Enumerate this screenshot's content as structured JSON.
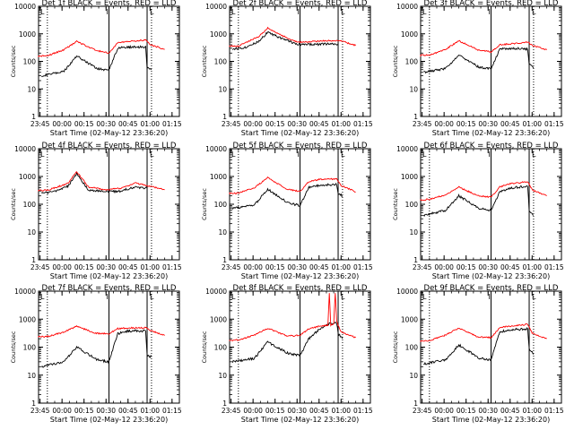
{
  "figure": {
    "x_tick_labels": [
      "23:45",
      "00:00",
      "00:15",
      "00:30",
      "00:45",
      "01:00",
      "01:15"
    ],
    "y_tick_labels": [
      "1",
      "10",
      "100",
      "1000",
      "10000"
    ],
    "y_label": "Counts/sec",
    "x_label": "Start Time (02-May-12 23:36:20)",
    "legend_markers": [
      "I",
      "L"
    ],
    "colors": {
      "events": "#000000",
      "lld": "#ff0000"
    }
  },
  "chart_data": [
    {
      "type": "line",
      "title": "Det 1f BLACK = Events, RED = LLD",
      "yscale": "log",
      "ylim": [
        1,
        10000
      ],
      "xlabel": "Start Time (02-May-12 23:36:20)",
      "ylabel": "Counts/sec",
      "grid": false,
      "x_tick_labels": [
        "23:45",
        "00:00",
        "00:15",
        "00:30",
        "00:45",
        "01:00",
        "01:15"
      ],
      "vlines_dotted": [
        "23:50",
        "01:01"
      ],
      "vlines_solid": [
        "00:32",
        "00:58"
      ],
      "series": [
        {
          "name": "Events",
          "color": "#000000",
          "x": [
            "23:46",
            "00:01",
            "00:10",
            "00:24",
            "00:32",
            "00:38",
            "00:45",
            "00:57",
            "00:58",
            "01:01"
          ],
          "y": [
            30,
            42,
            155,
            55,
            48,
            300,
            330,
            330,
            60,
            50
          ]
        },
        {
          "name": "LLD",
          "color": "#ff0000",
          "x": [
            "23:36",
            "23:50",
            "00:01",
            "00:10",
            "00:23",
            "00:32",
            "00:38",
            "00:45",
            "00:57",
            "01:00",
            "01:10"
          ],
          "y": [
            150,
            160,
            260,
            530,
            250,
            200,
            480,
            530,
            590,
            410,
            270
          ]
        }
      ]
    },
    {
      "type": "line",
      "title": "Det 2f BLACK = Events, RED = LLD",
      "yscale": "log",
      "ylim": [
        1,
        10000
      ],
      "xlabel": "Start Time (02-May-12 23:36:20)",
      "ylabel": "Counts/sec",
      "grid": false,
      "x_tick_labels": [
        "23:45",
        "00:00",
        "00:15",
        "00:30",
        "00:45",
        "01:00",
        "01:15"
      ],
      "vlines_dotted": [
        "23:50",
        "01:01"
      ],
      "vlines_solid": [
        "00:32",
        "00:58"
      ],
      "series": [
        {
          "name": "Events",
          "color": "#000000",
          "x": [
            "23:46",
            "23:56",
            "00:04",
            "00:10",
            "00:20",
            "00:30",
            "00:40",
            "00:50",
            "00:58"
          ],
          "y": [
            280,
            330,
            550,
            1150,
            650,
            420,
            400,
            430,
            430
          ]
        },
        {
          "name": "LLD",
          "color": "#ff0000",
          "x": [
            "23:36",
            "23:50",
            "00:04",
            "00:10",
            "00:20",
            "00:30",
            "00:40",
            "00:50",
            "01:00",
            "01:10"
          ],
          "y": [
            360,
            360,
            800,
            1600,
            850,
            500,
            520,
            560,
            550,
            380
          ]
        }
      ]
    },
    {
      "type": "line",
      "title": "Det 3f BLACK = Events, RED = LLD",
      "yscale": "log",
      "ylim": [
        1,
        10000
      ],
      "xlabel": "Start Time (02-May-12 23:36:20)",
      "ylabel": "Counts/sec",
      "grid": false,
      "x_tick_labels": [
        "23:45",
        "00:00",
        "00:15",
        "00:30",
        "00:45",
        "01:00",
        "01:15"
      ],
      "vlines_dotted": [
        "23:50",
        "01:01"
      ],
      "vlines_solid": [
        "00:32",
        "00:58"
      ],
      "series": [
        {
          "name": "Events",
          "color": "#000000",
          "x": [
            "23:46",
            "00:01",
            "00:10",
            "00:24",
            "00:32",
            "00:38",
            "00:45",
            "00:57",
            "00:58",
            "01:01"
          ],
          "y": [
            40,
            55,
            170,
            60,
            55,
            280,
            300,
            280,
            80,
            55
          ]
        },
        {
          "name": "LLD",
          "color": "#ff0000",
          "x": [
            "23:36",
            "23:50",
            "00:01",
            "00:10",
            "00:23",
            "00:32",
            "00:38",
            "00:45",
            "00:57",
            "01:00",
            "01:10"
          ],
          "y": [
            160,
            170,
            270,
            560,
            260,
            220,
            400,
            430,
            500,
            380,
            260
          ]
        }
      ]
    },
    {
      "type": "line",
      "title": "Det 4f BLACK = Events, RED = LLD",
      "yscale": "log",
      "ylim": [
        1,
        10000
      ],
      "xlabel": "Start Time (02-May-12 23:36:20)",
      "ylabel": "Counts/sec",
      "grid": false,
      "x_tick_labels": [
        "23:45",
        "00:00",
        "00:15",
        "00:30",
        "00:45",
        "01:00",
        "01:15"
      ],
      "vlines_dotted": [
        "23:50",
        "01:01"
      ],
      "vlines_solid": [
        "00:32",
        "00:58"
      ],
      "series": [
        {
          "name": "Events",
          "color": "#000000",
          "x": [
            "23:46",
            "23:56",
            "00:04",
            "00:10",
            "00:18",
            "00:30",
            "00:40",
            "00:50",
            "00:58"
          ],
          "y": [
            250,
            290,
            450,
            1250,
            330,
            280,
            300,
            420,
            380
          ]
        },
        {
          "name": "LLD",
          "color": "#ff0000",
          "x": [
            "23:36",
            "23:50",
            "00:04",
            "00:10",
            "00:18",
            "00:30",
            "00:40",
            "00:50",
            "01:00",
            "01:10"
          ],
          "y": [
            310,
            320,
            560,
            1500,
            420,
            330,
            380,
            580,
            450,
            330
          ]
        }
      ]
    },
    {
      "type": "line",
      "title": "Det 5f BLACK = Events, RED = LLD",
      "yscale": "log",
      "ylim": [
        1,
        10000
      ],
      "xlabel": "Start Time (02-May-12 23:36:20)",
      "ylabel": "Counts/sec",
      "grid": false,
      "x_tick_labels": [
        "23:45",
        "00:00",
        "00:15",
        "00:30",
        "00:45",
        "01:00",
        "01:15"
      ],
      "vlines_dotted": [
        "23:50",
        "01:01"
      ],
      "vlines_solid": [
        "00:32",
        "00:58"
      ],
      "series": [
        {
          "name": "Events",
          "color": "#000000",
          "x": [
            "23:46",
            "00:01",
            "00:10",
            "00:24",
            "00:32",
            "00:38",
            "00:45",
            "00:57",
            "00:58",
            "01:01"
          ],
          "y": [
            70,
            95,
            350,
            110,
            90,
            400,
            480,
            520,
            250,
            200
          ]
        },
        {
          "name": "LLD",
          "color": "#ff0000",
          "x": [
            "23:36",
            "23:50",
            "00:01",
            "00:10",
            "00:23",
            "00:32",
            "00:38",
            "00:45",
            "00:57",
            "01:00",
            "01:10"
          ],
          "y": [
            240,
            250,
            400,
            900,
            350,
            290,
            650,
            780,
            820,
            480,
            280
          ]
        }
      ]
    },
    {
      "type": "line",
      "title": "Det 6f BLACK = Events, RED = LLD",
      "yscale": "log",
      "ylim": [
        1,
        10000
      ],
      "xlabel": "Start Time (02-May-12 23:36:20)",
      "ylabel": "Counts/sec",
      "grid": false,
      "x_tick_labels": [
        "23:45",
        "00:00",
        "00:15",
        "00:30",
        "00:45",
        "01:00",
        "01:15"
      ],
      "vlines_dotted": [
        "23:50",
        "01:01"
      ],
      "vlines_solid": [
        "00:32",
        "00:58"
      ],
      "series": [
        {
          "name": "Events",
          "color": "#000000",
          "x": [
            "23:46",
            "00:01",
            "00:10",
            "00:24",
            "00:32",
            "00:38",
            "00:45",
            "00:57",
            "00:58",
            "01:01"
          ],
          "y": [
            40,
            60,
            200,
            70,
            60,
            280,
            380,
            450,
            60,
            40
          ]
        },
        {
          "name": "LLD",
          "color": "#ff0000",
          "x": [
            "23:36",
            "23:50",
            "00:01",
            "00:10",
            "00:23",
            "00:32",
            "00:38",
            "00:45",
            "00:57",
            "01:00",
            "01:10"
          ],
          "y": [
            140,
            150,
            220,
            420,
            200,
            180,
            420,
            560,
            640,
            330,
            200
          ]
        }
      ]
    },
    {
      "type": "line",
      "title": "Det 7f BLACK = Events, RED = LLD",
      "yscale": "log",
      "ylim": [
        1,
        10000
      ],
      "xlabel": "Start Time (02-May-12 23:36:20)",
      "ylabel": "Counts/sec",
      "grid": false,
      "x_tick_labels": [
        "23:45",
        "00:00",
        "00:15",
        "00:30",
        "00:45",
        "01:00",
        "01:15"
      ],
      "vlines_dotted": [
        "23:50",
        "01:01"
      ],
      "vlines_solid": [
        "00:32",
        "00:58"
      ],
      "series": [
        {
          "name": "Events",
          "color": "#000000",
          "x": [
            "23:46",
            "00:01",
            "00:10",
            "00:24",
            "00:32",
            "00:38",
            "00:45",
            "00:57",
            "00:58",
            "01:01"
          ],
          "y": [
            20,
            30,
            100,
            35,
            30,
            300,
            380,
            380,
            50,
            45
          ]
        },
        {
          "name": "LLD",
          "color": "#ff0000",
          "x": [
            "23:36",
            "23:50",
            "00:01",
            "00:10",
            "00:23",
            "00:32",
            "00:38",
            "00:45",
            "00:57",
            "01:00",
            "01:10"
          ],
          "y": [
            230,
            240,
            340,
            560,
            310,
            300,
            460,
            480,
            500,
            400,
            260
          ]
        }
      ]
    },
    {
      "type": "line",
      "title": "Det 8f BLACK = Events, RED = LLD",
      "yscale": "log",
      "ylim": [
        1,
        10000
      ],
      "xlabel": "Start Time (02-May-12 23:36:20)",
      "ylabel": "Counts/sec",
      "grid": false,
      "x_tick_labels": [
        "23:45",
        "00:00",
        "00:15",
        "00:30",
        "00:45",
        "01:00",
        "01:15"
      ],
      "vlines_dotted": [
        "23:50",
        "01:01"
      ],
      "vlines_solid": [
        "00:32",
        "00:58"
      ],
      "series": [
        {
          "name": "Events",
          "color": "#000000",
          "x": [
            "23:46",
            "00:01",
            "00:10",
            "00:24",
            "00:32",
            "00:38",
            "00:45",
            "00:52",
            "00:57",
            "00:58",
            "01:01"
          ],
          "y": [
            30,
            40,
            150,
            60,
            50,
            200,
            420,
            700,
            750,
            300,
            200
          ]
        },
        {
          "name": "LLD",
          "color": "#ff0000",
          "x": [
            "23:36",
            "23:50",
            "00:01",
            "00:10",
            "00:23",
            "00:32",
            "00:38",
            "00:45",
            "00:51",
            "00:52",
            "00:53",
            "00:55",
            "00:56",
            "00:57",
            "01:00",
            "01:10"
          ],
          "y": [
            170,
            180,
            270,
            470,
            250,
            260,
            450,
            560,
            600,
            9000,
            600,
            650,
            9000,
            820,
            350,
            220
          ]
        }
      ]
    },
    {
      "type": "line",
      "title": "Det 9f BLACK = Events, RED = LLD",
      "yscale": "log",
      "ylim": [
        1,
        10000
      ],
      "xlabel": "Start Time (02-May-12 23:36:20)",
      "ylabel": "Counts/sec",
      "grid": false,
      "x_tick_labels": [
        "23:45",
        "00:00",
        "00:15",
        "00:30",
        "00:45",
        "01:00",
        "01:15"
      ],
      "vlines_dotted": [
        "23:50",
        "01:01"
      ],
      "vlines_solid": [
        "00:32",
        "00:58"
      ],
      "series": [
        {
          "name": "Events",
          "color": "#000000",
          "x": [
            "23:46",
            "00:01",
            "00:10",
            "00:24",
            "00:32",
            "00:38",
            "00:45",
            "00:57",
            "00:58",
            "01:01"
          ],
          "y": [
            25,
            35,
            120,
            40,
            35,
            350,
            420,
            450,
            90,
            55
          ]
        },
        {
          "name": "LLD",
          "color": "#ff0000",
          "x": [
            "23:36",
            "23:50",
            "00:01",
            "00:10",
            "00:23",
            "00:32",
            "00:38",
            "00:45",
            "00:57",
            "01:00",
            "01:10"
          ],
          "y": [
            160,
            170,
            270,
            480,
            230,
            220,
            500,
            560,
            650,
            320,
            200
          ]
        }
      ]
    }
  ]
}
